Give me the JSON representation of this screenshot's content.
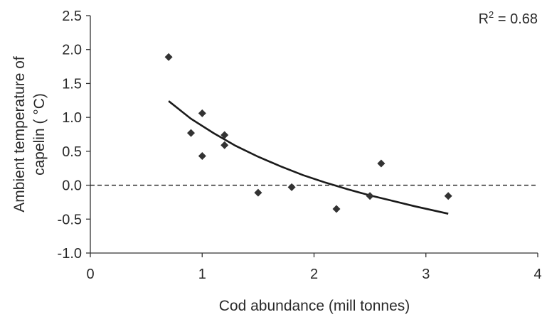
{
  "chart_data": {
    "type": "scatter",
    "title": "",
    "xlabel": "Cod abundance (mill tonnes)",
    "ylabel_lines": [
      "Ambient temperature of",
      "capelin ( °C)"
    ],
    "xlim": [
      0,
      4
    ],
    "ylim": [
      -1.0,
      2.5
    ],
    "x_ticks": [
      0,
      1,
      2,
      3,
      4
    ],
    "x_tick_labels": [
      "0",
      "1",
      "2",
      "3",
      "4"
    ],
    "y_ticks": [
      2.5,
      2.0,
      1.5,
      1.0,
      0.5,
      0.0,
      -0.5,
      -1.0
    ],
    "y_tick_labels": [
      "2.5",
      "2.0",
      "1.5",
      "1.0",
      "0.5",
      "0.0",
      "-0.5",
      "-1.0"
    ],
    "grid": false,
    "annotation": {
      "prefix": "R",
      "sup": "2",
      "suffix": " = 0.68"
    },
    "series": [
      {
        "points": [
          {
            "x": 0.7,
            "y": 1.89
          },
          {
            "x": 0.9,
            "y": 0.77
          },
          {
            "x": 1.0,
            "y": 1.06
          },
          {
            "x": 1.0,
            "y": 0.43
          },
          {
            "x": 1.2,
            "y": 0.74
          },
          {
            "x": 1.2,
            "y": 0.59
          },
          {
            "x": 1.5,
            "y": -0.11
          },
          {
            "x": 1.8,
            "y": -0.03
          },
          {
            "x": 2.2,
            "y": -0.35
          },
          {
            "x": 2.5,
            "y": -0.16
          },
          {
            "x": 2.6,
            "y": 0.32
          },
          {
            "x": 3.2,
            "y": -0.16
          }
        ],
        "color": "#333333"
      }
    ],
    "fit_curve": {
      "x": [
        0.7,
        0.9,
        1.1,
        1.3,
        1.5,
        1.7,
        1.9,
        2.1,
        2.3,
        2.5,
        2.7,
        2.9,
        3.2
      ],
      "y": [
        1.24,
        0.98,
        0.77,
        0.58,
        0.42,
        0.28,
        0.15,
        0.04,
        -0.06,
        -0.15,
        -0.23,
        -0.31,
        -0.42
      ],
      "color": "#1a1a1a"
    },
    "reference_line": {
      "y": 0.0,
      "style": "dashed",
      "color": "#1a1a1a"
    }
  }
}
